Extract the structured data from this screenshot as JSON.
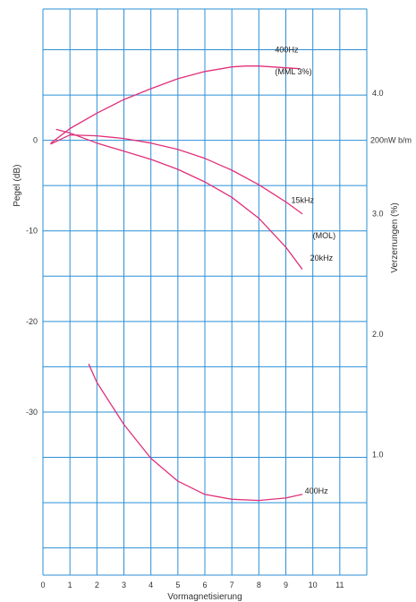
{
  "chart_data": {
    "type": "line",
    "title": "",
    "xlabel": "Vormagnetisierung",
    "ylabel_left": "Pegel (dB)",
    "ylabel_right": "Verzerrungen  (%)",
    "xlim": [
      0,
      12
    ],
    "x_ticks": [
      "0",
      "1",
      "2",
      "3",
      "4",
      "5",
      "6",
      "7",
      "8",
      "9",
      "10",
      "11"
    ],
    "left_ylim": [
      -48,
      14.5
    ],
    "left_ticks": [
      {
        "value": 0,
        "label": "0"
      },
      {
        "value": -10,
        "label": "-10"
      },
      {
        "value": -20,
        "label": "-20"
      },
      {
        "value": -30,
        "label": "-30"
      }
    ],
    "right_ylim": [
      0,
      4.7
    ],
    "right_ticks": [
      {
        "value": 1.0,
        "label": "1.0"
      },
      {
        "value": 2.0,
        "label": "2.0"
      },
      {
        "value": 3.0,
        "label": "3.0"
      },
      {
        "value": 4.0,
        "label": "4.0"
      }
    ],
    "reference_label": "200nW b/m",
    "grid": true,
    "grid_color": "#2b8fd6",
    "curve_color": "#e0307a",
    "series": [
      {
        "name": "400Hz",
        "axis": "left",
        "x": [
          0.3,
          1,
          2,
          3,
          4,
          5,
          6,
          7,
          7.5,
          8,
          8.5,
          9,
          9.5
        ],
        "y": [
          -0.3,
          1.3,
          3.0,
          4.5,
          5.7,
          6.8,
          7.6,
          8.1,
          8.2,
          8.2,
          8.1,
          8.0,
          7.9
        ]
      },
      {
        "name": "15kHz",
        "axis": "left",
        "x": [
          0.3,
          1,
          2,
          3,
          4,
          5,
          6,
          7,
          8,
          9,
          9.6
        ],
        "y": [
          -0.4,
          0.6,
          0.5,
          0.2,
          -0.3,
          -1.0,
          -2.0,
          -3.3,
          -4.9,
          -6.8,
          -8.1
        ]
      },
      {
        "name": "20kHz",
        "axis": "left",
        "x": [
          0.5,
          1,
          2,
          3,
          4,
          5,
          6,
          7,
          8,
          9,
          9.6
        ],
        "y": [
          1.2,
          0.8,
          -0.3,
          -1.2,
          -2.1,
          -3.2,
          -4.6,
          -6.3,
          -8.6,
          -11.8,
          -14.2
        ]
      },
      {
        "name": "400Hz",
        "axis": "right",
        "x": [
          1.7,
          2,
          3,
          4,
          5,
          6,
          7,
          8,
          9,
          9.6
        ],
        "y": [
          1.75,
          1.6,
          1.25,
          0.97,
          0.78,
          0.67,
          0.63,
          0.62,
          0.64,
          0.67
        ]
      }
    ],
    "annotations": [
      {
        "text": "400Hz",
        "series": 0
      },
      {
        "text": "(MML 3%)",
        "series": 0
      },
      {
        "text": "15kHz",
        "series": 1
      },
      {
        "text": "(MOL)",
        "series": 2
      },
      {
        "text": "20kHz",
        "series": 2
      },
      {
        "text": "400Hz",
        "series": 3
      }
    ]
  }
}
